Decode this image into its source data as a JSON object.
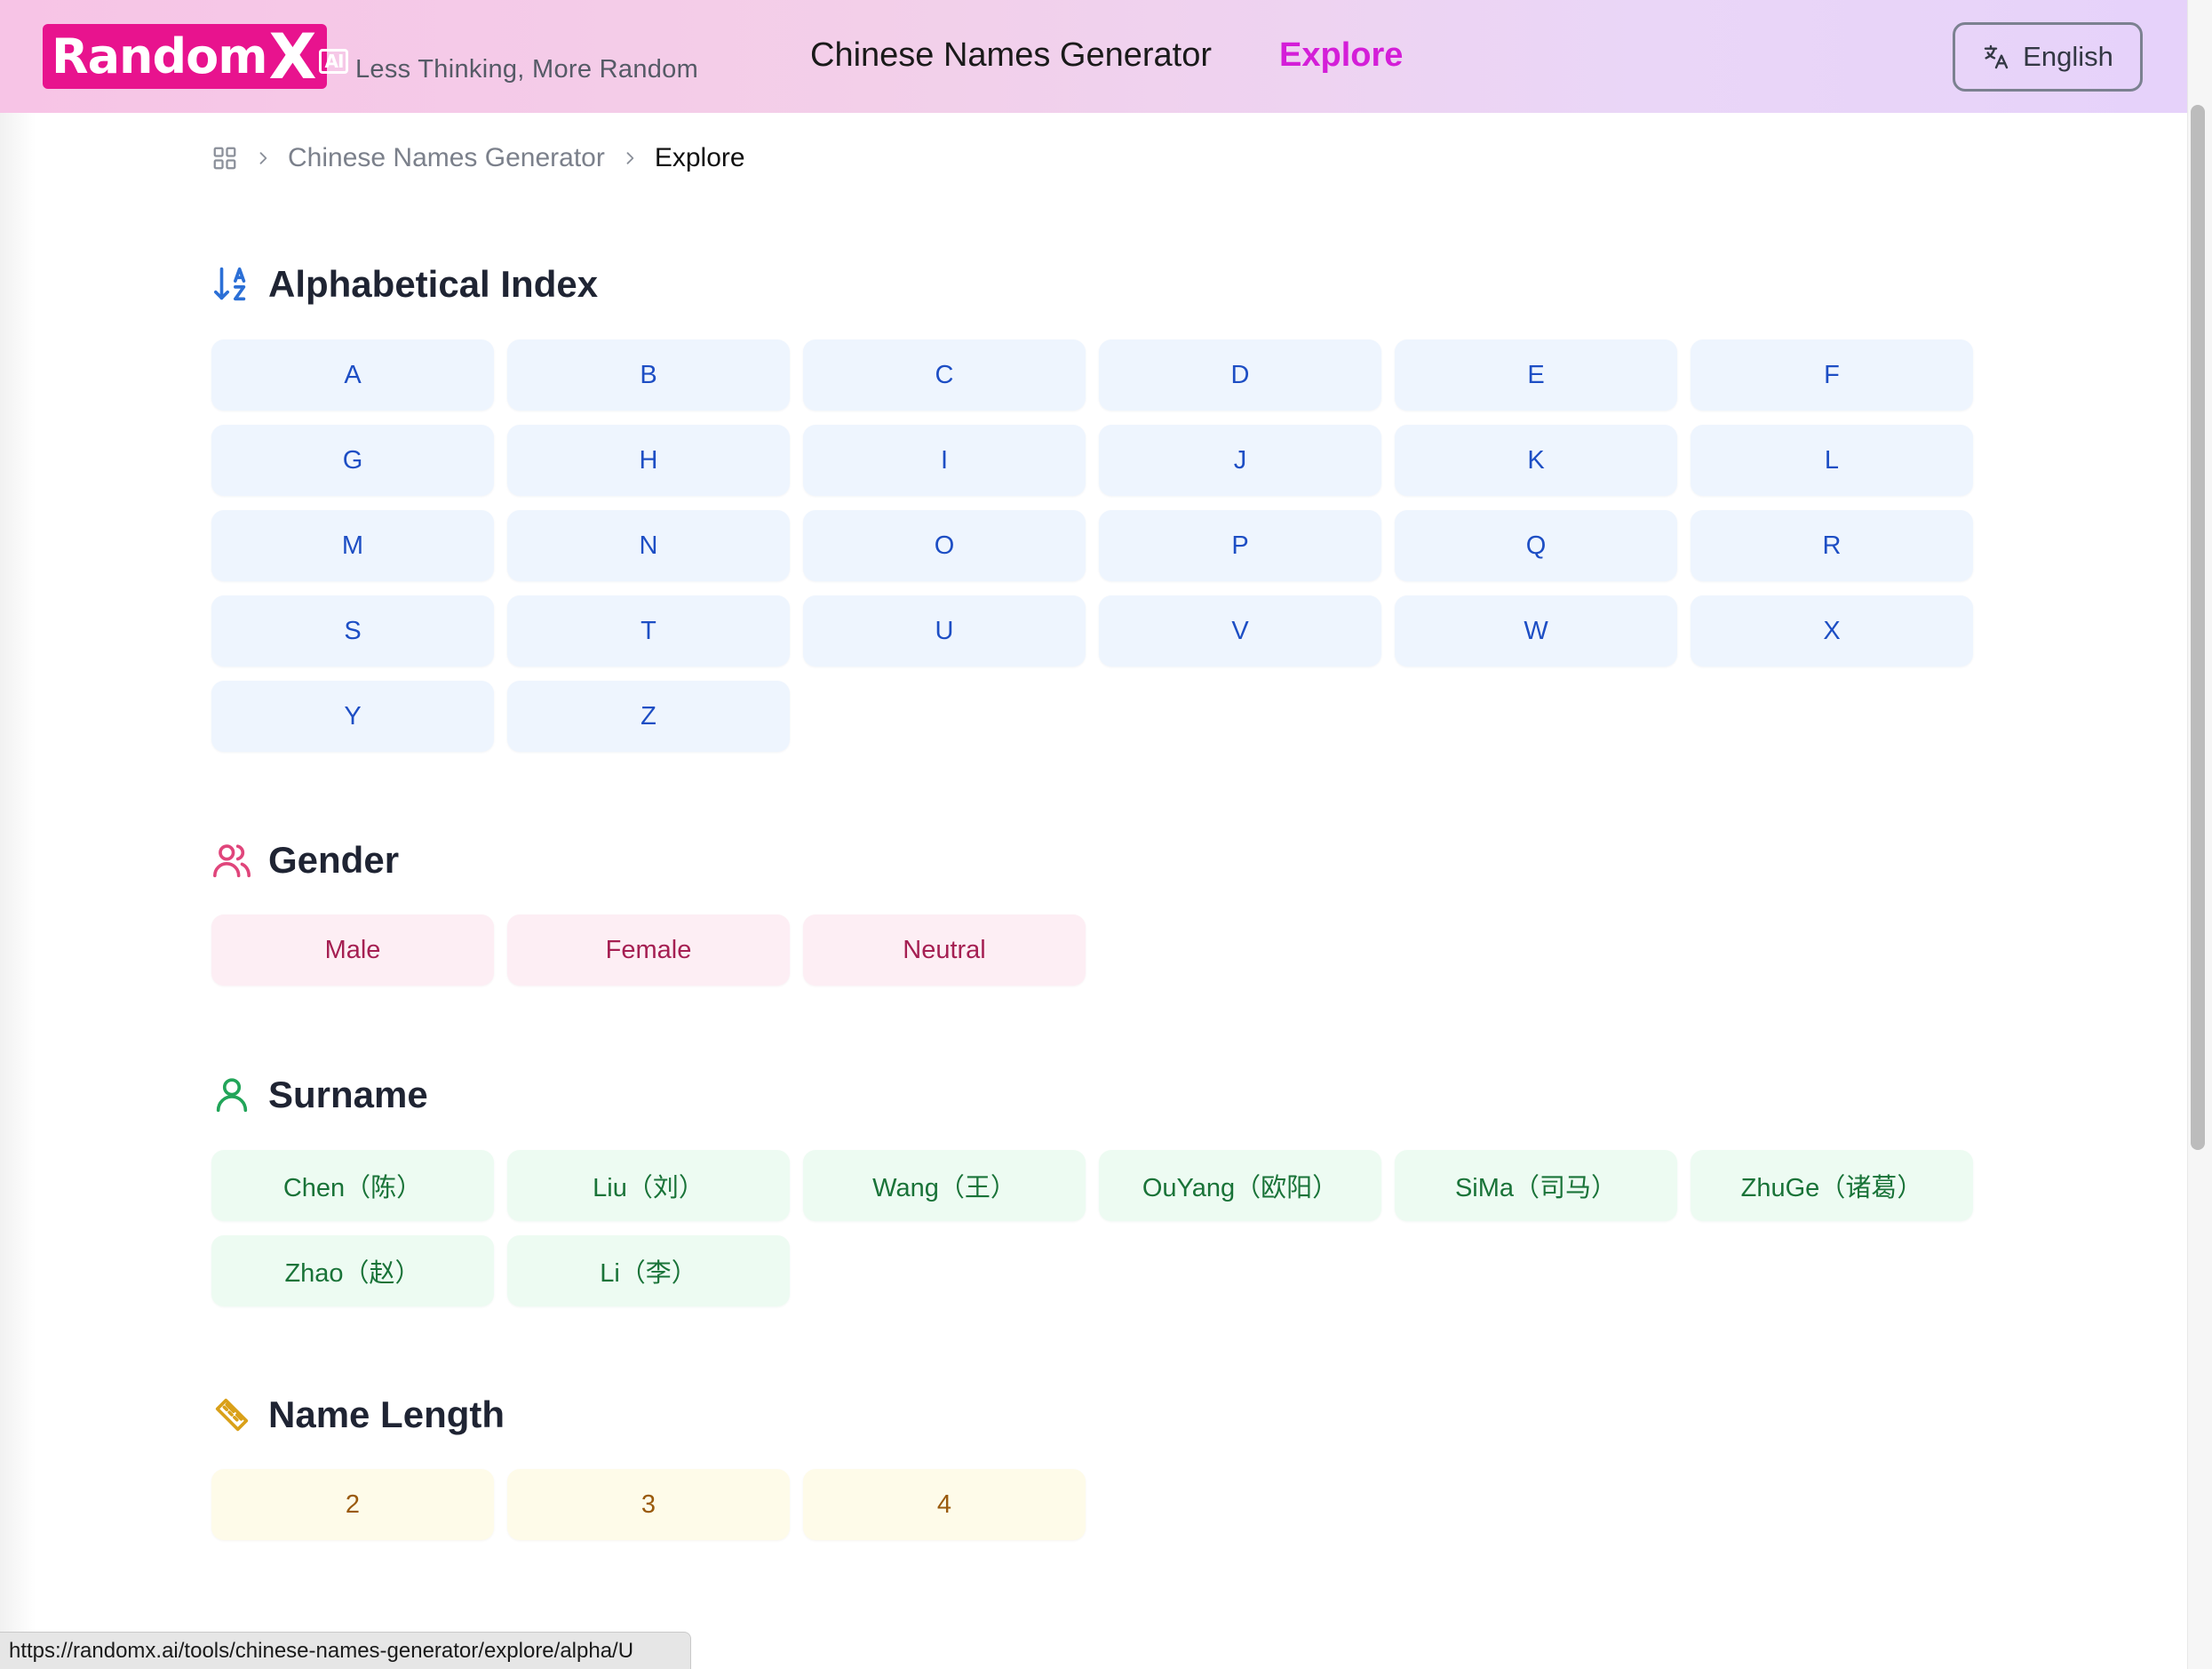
{
  "header": {
    "logo_text": "Random",
    "logo_x": "X",
    "logo_ai": "AI",
    "tagline": "Less Thinking, More Random",
    "nav": [
      {
        "label": "Chinese Names Generator",
        "active": false
      },
      {
        "label": "Explore",
        "active": true
      }
    ],
    "language_button": {
      "label": "English",
      "icon": "translate-icon"
    }
  },
  "breadcrumb": {
    "home_icon": "grid-icon",
    "items": [
      "Chinese Names Generator",
      "Explore"
    ]
  },
  "sections": {
    "alphabetical": {
      "title": "Alphabetical Index",
      "icon": "sort-az-icon",
      "accent": "#2b6fd6",
      "items": [
        "A",
        "B",
        "C",
        "D",
        "E",
        "F",
        "G",
        "H",
        "I",
        "J",
        "K",
        "L",
        "M",
        "N",
        "O",
        "P",
        "Q",
        "R",
        "S",
        "T",
        "U",
        "V",
        "W",
        "X",
        "Y",
        "Z"
      ]
    },
    "gender": {
      "title": "Gender",
      "icon": "users-icon",
      "accent": "#e0457b",
      "items": [
        "Male",
        "Female",
        "Neutral"
      ]
    },
    "surname": {
      "title": "Surname",
      "icon": "user-icon",
      "accent": "#22a559",
      "items": [
        "Chen（陈）",
        "Liu（刘）",
        "Wang（王）",
        "OuYang（欧阳）",
        "SiMa（司马）",
        "ZhuGe（诸葛）",
        "Zhao（赵）",
        "Li（李）"
      ]
    },
    "name_length": {
      "title": "Name Length",
      "icon": "ruler-icon",
      "accent": "#d9a019",
      "items": [
        "2",
        "3",
        "4"
      ]
    }
  },
  "status_bar": {
    "url": "https://randomx.ai/tools/chinese-names-generator/explore/alpha/U"
  }
}
